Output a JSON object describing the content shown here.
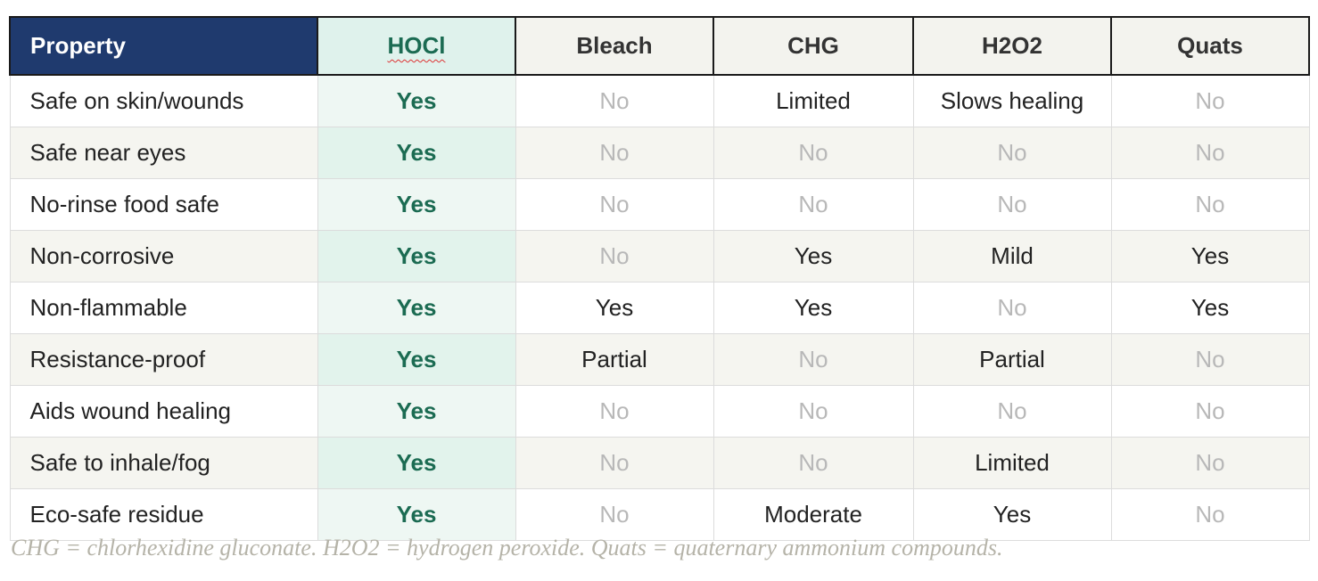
{
  "table": {
    "header": [
      "Property",
      "HOCl",
      "Bleach",
      "CHG",
      "H2O2",
      "Quats"
    ],
    "rows": [
      [
        "Safe on skin/wounds",
        "Yes",
        "No",
        "Limited",
        "Slows healing",
        "No"
      ],
      [
        "Safe near eyes",
        "Yes",
        "No",
        "No",
        "No",
        "No"
      ],
      [
        "No-rinse food safe",
        "Yes",
        "No",
        "No",
        "No",
        "No"
      ],
      [
        "Non-corrosive",
        "Yes",
        "No",
        "Yes",
        "Mild",
        "Yes"
      ],
      [
        "Non-flammable",
        "Yes",
        "Yes",
        "Yes",
        "No",
        "Yes"
      ],
      [
        "Resistance-proof",
        "Yes",
        "Partial",
        "No",
        "Partial",
        "No"
      ],
      [
        "Aids wound healing",
        "Yes",
        "No",
        "No",
        "No",
        "No"
      ],
      [
        "Safe to inhale/fog",
        "Yes",
        "No",
        "No",
        "Limited",
        "No"
      ],
      [
        "Eco-safe residue",
        "Yes",
        "No",
        "Moderate",
        "Yes",
        "No"
      ]
    ]
  },
  "footnote": "CHG = chlorhexidine gluconate. H2O2 = hydrogen peroxide. Quats = quaternary ammonium compounds."
}
